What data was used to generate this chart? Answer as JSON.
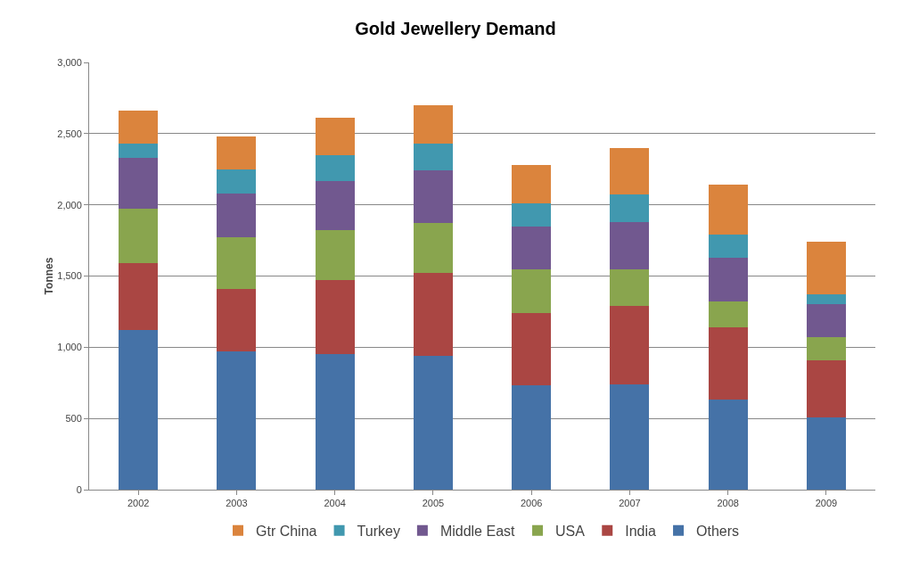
{
  "chart_data": {
    "type": "bar",
    "title": "Gold Jewellery Demand",
    "ylabel": "Tonnes",
    "categories": [
      "2002",
      "2003",
      "2004",
      "2005",
      "2006",
      "2007",
      "2008",
      "2009"
    ],
    "stacked": true,
    "series": [
      {
        "name": "Others",
        "color": "#4572a7",
        "values": [
          1120,
          970,
          950,
          940,
          730,
          740,
          630,
          510
        ]
      },
      {
        "name": "India",
        "color": "#aa4643",
        "values": [
          470,
          440,
          520,
          580,
          510,
          550,
          510,
          400
        ]
      },
      {
        "name": "USA",
        "color": "#89a54e",
        "values": [
          380,
          360,
          350,
          350,
          310,
          260,
          180,
          160
        ]
      },
      {
        "name": "Middle East",
        "color": "#71588f",
        "values": [
          360,
          310,
          350,
          370,
          300,
          330,
          310,
          230
        ]
      },
      {
        "name": "Turkey",
        "color": "#4198af",
        "values": [
          100,
          170,
          180,
          190,
          160,
          190,
          160,
          70
        ]
      },
      {
        "name": "Gtr China",
        "color": "#db843d",
        "values": [
          230,
          230,
          260,
          270,
          270,
          330,
          350,
          370
        ]
      }
    ],
    "ylim": [
      0,
      3000
    ],
    "yticks": [
      0,
      500,
      {
        "value": 1000,
        "label": "1,000"
      },
      {
        "value": 1500,
        "label": "1,500"
      },
      {
        "value": 2000,
        "label": "2,000"
      },
      {
        "value": 2500,
        "label": "2,500"
      },
      {
        "value": 3000,
        "label": "3,000"
      }
    ],
    "grid": "y",
    "legend": "bottom"
  }
}
